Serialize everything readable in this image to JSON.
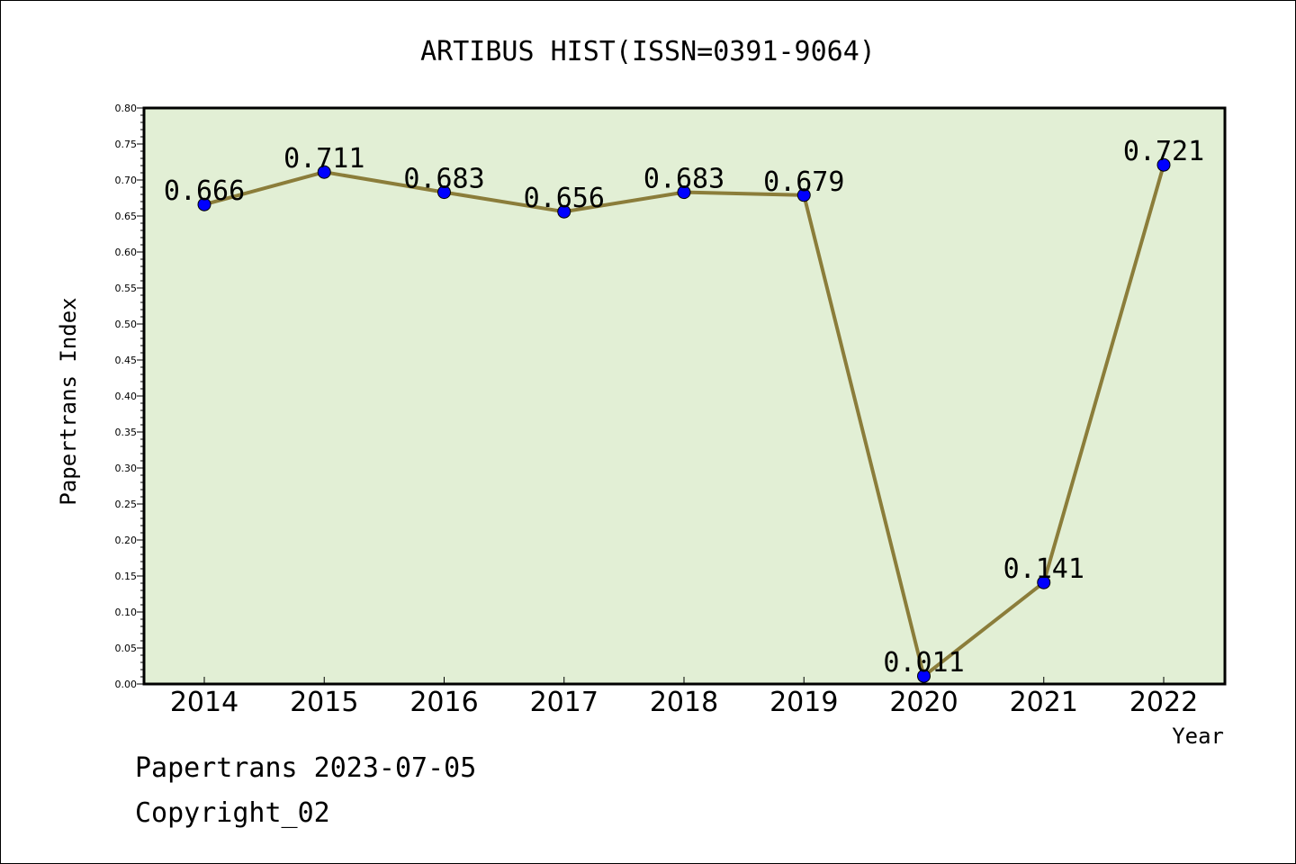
{
  "chart_data": {
    "type": "line",
    "title": "ARTIBUS HIST(ISSN=0391-9064)",
    "xlabel": "Year",
    "ylabel": "Papertrans Index",
    "categories": [
      "2014",
      "2015",
      "2016",
      "2017",
      "2018",
      "2019",
      "2020",
      "2021",
      "2022"
    ],
    "values": [
      0.666,
      0.711,
      0.683,
      0.656,
      0.683,
      0.679,
      0.011,
      0.141,
      0.721
    ],
    "data_labels": [
      "0.666",
      "0.711",
      "0.683",
      "0.656",
      "0.683",
      "0.679",
      "0.011",
      "0.141",
      "0.721"
    ],
    "ylim": [
      0,
      0.8
    ],
    "yticks": [
      "0.00",
      "0.05",
      "0.10",
      "0.15",
      "0.20",
      "0.25",
      "0.30",
      "0.35",
      "0.40",
      "0.45",
      "0.50",
      "0.55",
      "0.60",
      "0.65",
      "0.70",
      "0.75",
      "0.80"
    ],
    "grid": false,
    "legend": "none",
    "colors": {
      "plot_background": "#e2efd5",
      "line": "#8b7d3a",
      "marker": "#0000ff"
    }
  },
  "footer": {
    "line1": "Papertrans 2023-07-05",
    "line2": "Copyright_02"
  }
}
